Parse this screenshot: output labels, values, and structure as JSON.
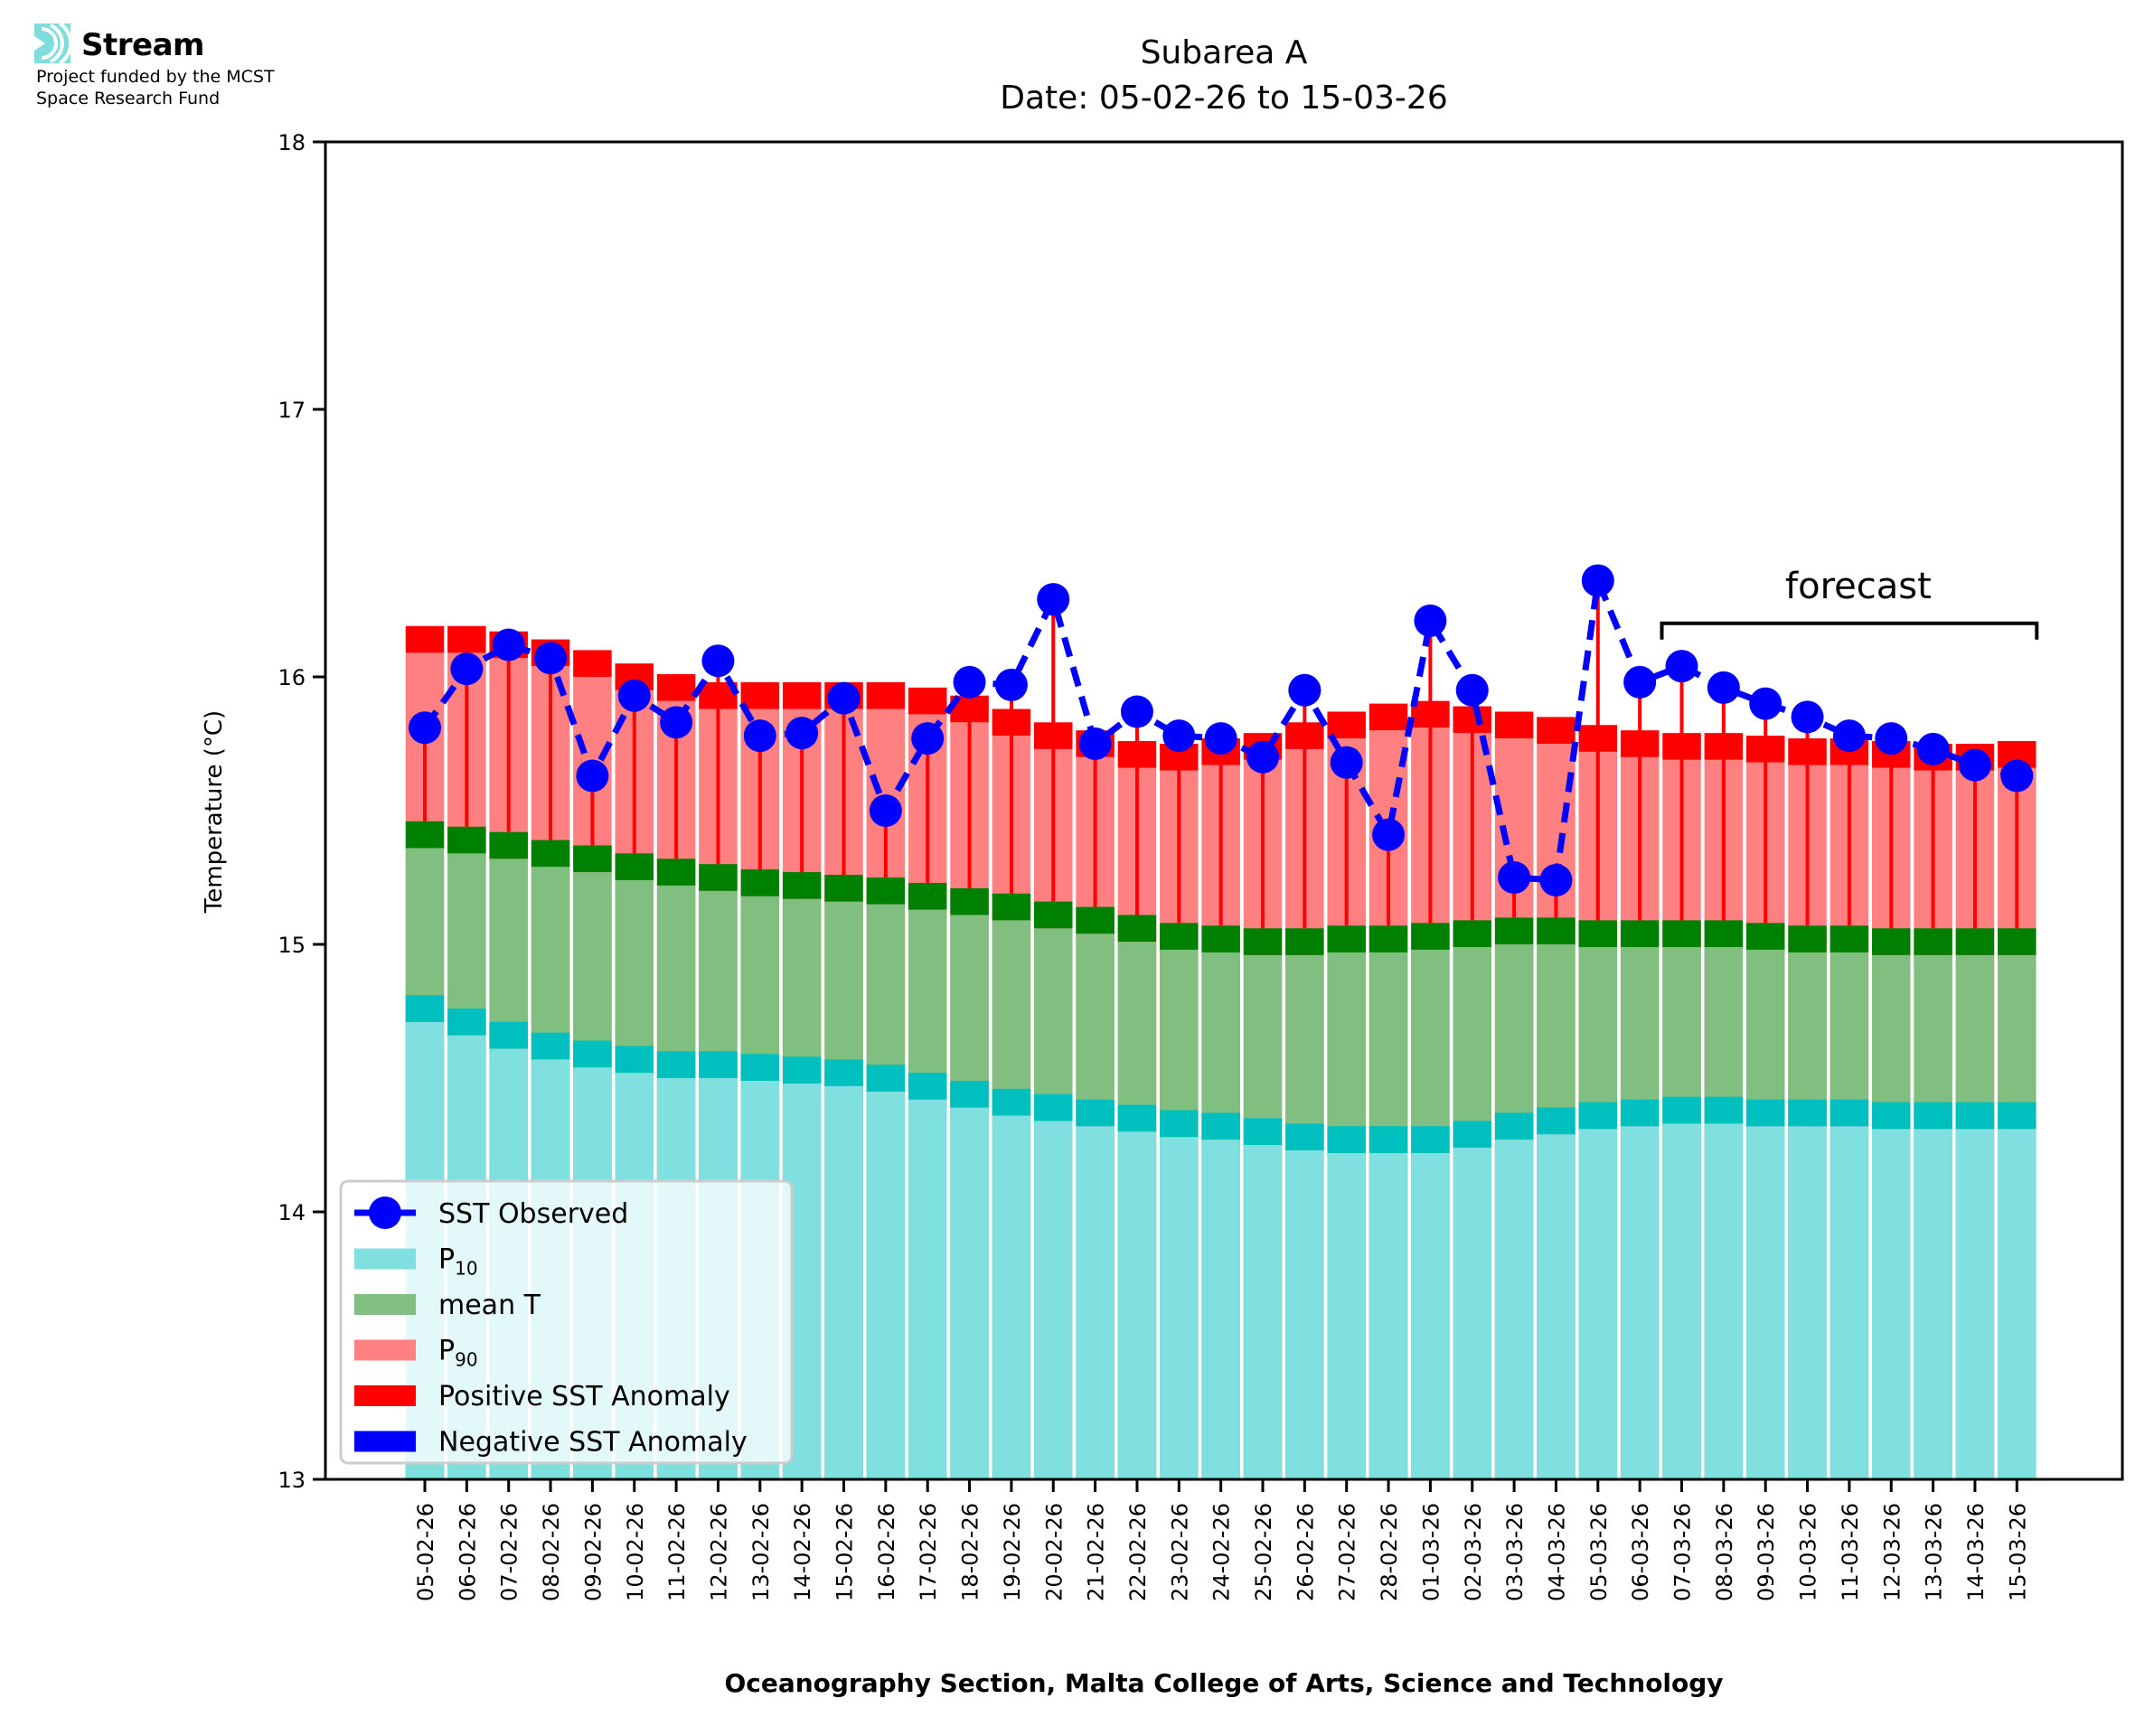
{
  "header": {
    "logo_name": "Stream",
    "funding_line1": "Project funded by the MCST",
    "funding_line2": "Space Research Fund",
    "logo_color": "#7fdedb"
  },
  "chart_data": {
    "type": "bar",
    "title": "Subarea A",
    "subtitle": "Date: 05-02-26 to 15-03-26",
    "xlabel": "Oceanography Section, Malta College of Arts, Science and Technology",
    "ylabel": "Temperature (°C)",
    "ylim": [
      13,
      18
    ],
    "yticks": [
      13,
      14,
      15,
      16,
      17,
      18
    ],
    "grid": false,
    "legend_placement": "lower-left",
    "categories": [
      "05-02-26",
      "06-02-26",
      "07-02-26",
      "08-02-26",
      "09-02-26",
      "10-02-26",
      "11-02-26",
      "12-02-26",
      "13-02-26",
      "14-02-26",
      "15-02-26",
      "16-02-26",
      "17-02-26",
      "18-02-26",
      "19-02-26",
      "20-02-26",
      "21-02-26",
      "22-02-26",
      "23-02-26",
      "24-02-26",
      "25-02-26",
      "26-02-26",
      "27-02-26",
      "28-02-26",
      "01-03-26",
      "02-03-26",
      "03-03-26",
      "04-03-26",
      "05-03-26",
      "06-03-26",
      "07-03-26",
      "08-03-26",
      "09-03-26",
      "10-03-26",
      "11-03-26",
      "12-03-26",
      "13-03-26",
      "14-03-26",
      "15-03-26"
    ],
    "series": [
      {
        "name": "P10",
        "kind": "bar",
        "color": "#80dfdf",
        "cap_color": "#00bfbf",
        "values": [
          14.81,
          14.76,
          14.71,
          14.67,
          14.64,
          14.62,
          14.6,
          14.6,
          14.59,
          14.58,
          14.57,
          14.55,
          14.52,
          14.49,
          14.46,
          14.44,
          14.42,
          14.4,
          14.38,
          14.37,
          14.35,
          14.33,
          14.32,
          14.32,
          14.32,
          14.34,
          14.37,
          14.39,
          14.41,
          14.42,
          14.43,
          14.43,
          14.42,
          14.42,
          14.42,
          14.41,
          14.41,
          14.41,
          14.41
        ]
      },
      {
        "name": "mean T",
        "kind": "bar",
        "color": "#80bf80",
        "cap_color": "#008000",
        "values": [
          15.46,
          15.44,
          15.42,
          15.39,
          15.37,
          15.34,
          15.32,
          15.3,
          15.28,
          15.27,
          15.26,
          15.25,
          15.23,
          15.21,
          15.19,
          15.16,
          15.14,
          15.11,
          15.08,
          15.07,
          15.06,
          15.06,
          15.07,
          15.07,
          15.08,
          15.09,
          15.1,
          15.1,
          15.09,
          15.09,
          15.09,
          15.09,
          15.08,
          15.07,
          15.07,
          15.06,
          15.06,
          15.06,
          15.06
        ]
      },
      {
        "name": "P90",
        "kind": "bar",
        "color": "#ff8080",
        "cap_color": "#ff0000",
        "values": [
          16.19,
          16.19,
          16.17,
          16.14,
          16.1,
          16.05,
          16.01,
          15.98,
          15.98,
          15.98,
          15.98,
          15.98,
          15.96,
          15.93,
          15.88,
          15.83,
          15.8,
          15.76,
          15.75,
          15.77,
          15.79,
          15.83,
          15.87,
          15.9,
          15.91,
          15.89,
          15.87,
          15.85,
          15.82,
          15.8,
          15.79,
          15.79,
          15.78,
          15.77,
          15.77,
          15.76,
          15.75,
          15.75,
          15.76
        ]
      },
      {
        "name": "SST Observed",
        "kind": "line",
        "color": "#0000ff",
        "style": "dashed",
        "marker": "circle",
        "values": [
          15.81,
          16.03,
          16.12,
          16.07,
          15.63,
          15.93,
          15.83,
          16.06,
          15.78,
          15.79,
          15.92,
          15.5,
          15.77,
          15.98,
          15.97,
          16.29,
          15.75,
          15.87,
          15.78,
          15.77,
          15.7,
          15.95,
          15.68,
          15.41,
          16.21,
          15.95,
          15.25,
          15.24,
          16.36,
          15.98,
          16.04,
          15.96,
          15.9,
          15.85,
          15.78,
          15.77,
          15.73,
          15.67,
          15.63
        ]
      }
    ],
    "anomaly_colors": {
      "positive": "#ff0000",
      "negative": "#0000ff"
    },
    "cap_thickness_c": 0.1,
    "legend": [
      {
        "label": "SST Observed",
        "swatch": "line-marker",
        "color": "#0000ff"
      },
      {
        "label": "P",
        "sub": "10",
        "swatch": "patch",
        "color": "#80dfdf"
      },
      {
        "label": "mean T",
        "sub": "",
        "swatch": "patch",
        "color": "#80bf80"
      },
      {
        "label": "P",
        "sub": "90",
        "swatch": "patch",
        "color": "#ff8080"
      },
      {
        "label": "Positive SST Anomaly",
        "sub": "",
        "swatch": "patch",
        "color": "#ff0000"
      },
      {
        "label": "Negative SST Anomaly",
        "sub": "",
        "swatch": "patch",
        "color": "#0000ff"
      }
    ],
    "annotations": [
      {
        "text": "forecast",
        "bracket_from": "07-03-26",
        "bracket_to": "15-03-26",
        "y": 16.2
      }
    ]
  }
}
